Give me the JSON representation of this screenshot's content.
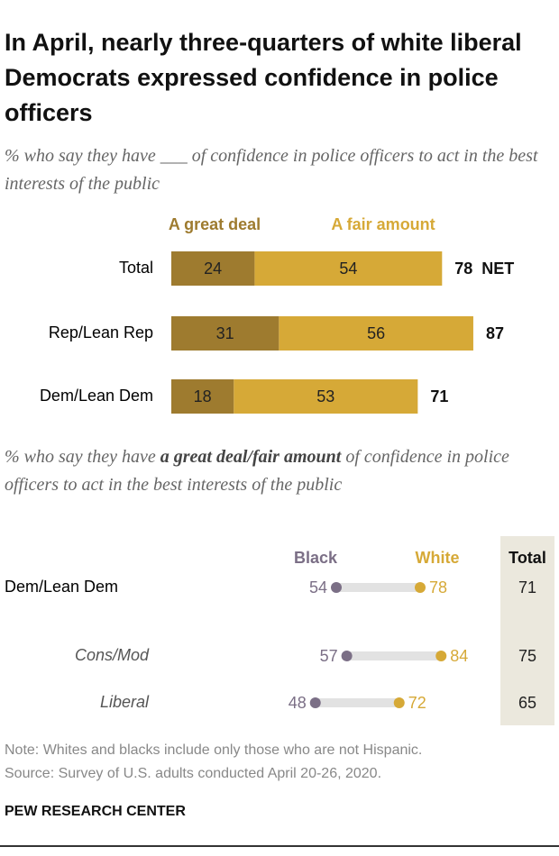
{
  "page": {
    "title": "In April, nearly three-quarters of white liberal Democrats expressed confidence in police officers",
    "note": "Note: Whites and blacks include only those who are not Hispanic.",
    "source": "Source: Survey of U.S. adults conducted April 20-26, 2020.",
    "brand": "PEW RESEARCH CENTER"
  },
  "chart_data": [
    {
      "type": "bar",
      "orientation": "horizontal",
      "stacked": true,
      "subtitle": "% who say they have ___ of confidence in police officers to act in the best interests of the public",
      "categories": [
        "Total",
        "Rep/Lean Rep",
        "Dem/Lean Dem"
      ],
      "series": [
        {
          "name": "A great deal",
          "color": "#9e7b2f",
          "values": [
            24,
            31,
            18
          ]
        },
        {
          "name": "A fair amount",
          "color": "#d6a937",
          "values": [
            54,
            56,
            53
          ]
        }
      ],
      "net_values": [
        78,
        87,
        71
      ],
      "net_label": "NET"
    },
    {
      "type": "dot",
      "subtitle": [
        "% who say they have ",
        "a great deal/fair amount",
        " of confidence in police officers to act in the best interests of the public"
      ],
      "categories": [
        "Dem/Lean Dem",
        "Cons/Mod",
        "Liberal"
      ],
      "series": [
        {
          "name": "Black",
          "color": "#7b6f86",
          "values": [
            54,
            57,
            48
          ]
        },
        {
          "name": "White",
          "color": "#d6a937",
          "values": [
            78,
            84,
            72
          ]
        }
      ],
      "totals": {
        "name": "Total",
        "values": [
          71,
          75,
          65
        ]
      }
    }
  ]
}
